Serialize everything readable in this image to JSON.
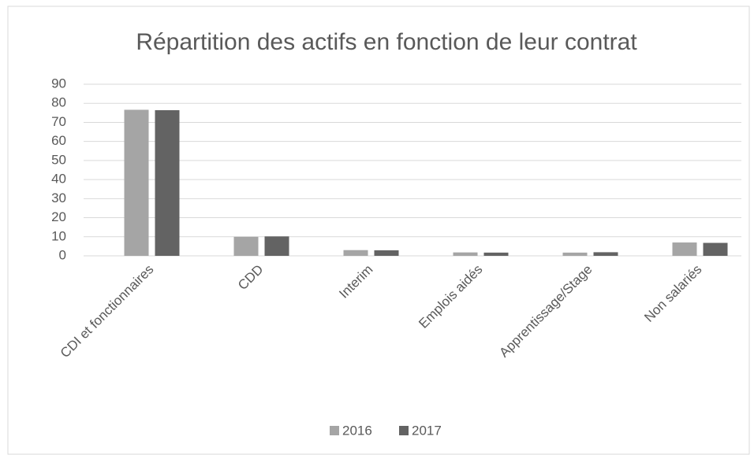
{
  "chart_data": {
    "type": "bar",
    "title": "Répartition des actifs en fonction de leur contrat",
    "categories": [
      "CDI et fonctionnaires",
      "CDD",
      "Interim",
      "Emplois aidés",
      "Apprentissage/Stage",
      "Non salariés"
    ],
    "series": [
      {
        "name": "2016",
        "color": "#a5a5a5",
        "values": [
          76.6,
          10,
          3,
          1.8,
          1.7,
          7
        ]
      },
      {
        "name": "2017",
        "color": "#636363",
        "values": [
          76.4,
          10.2,
          2.9,
          1.7,
          1.9,
          6.8
        ]
      }
    ],
    "ylim": [
      0,
      90
    ],
    "yticks": [
      0,
      10,
      20,
      30,
      40,
      50,
      60,
      70,
      80,
      90
    ],
    "grid": true,
    "legend": "bottom"
  }
}
